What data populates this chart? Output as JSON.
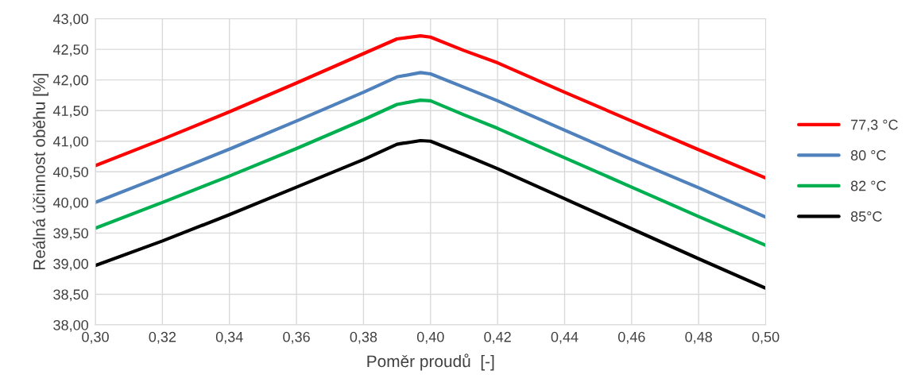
{
  "chart_data": {
    "type": "line",
    "xlabel": "Poměr proudů  [-]",
    "ylabel": "Reálná účinnost oběhu [%]",
    "x": [
      0.3,
      0.32,
      0.34,
      0.36,
      0.38,
      0.39,
      0.397,
      0.4,
      0.41,
      0.42,
      0.44,
      0.46,
      0.48,
      0.5
    ],
    "series": [
      {
        "name": "77,3 °C",
        "color": "#ff0000",
        "values": [
          40.6,
          41.03,
          41.48,
          41.95,
          42.43,
          42.67,
          42.72,
          42.7,
          42.48,
          42.28,
          41.8,
          41.33,
          40.86,
          40.4
        ]
      },
      {
        "name": "80 °C",
        "color": "#4f81bd",
        "values": [
          40.0,
          40.43,
          40.87,
          41.33,
          41.8,
          42.05,
          42.12,
          42.1,
          41.88,
          41.66,
          41.18,
          40.7,
          40.24,
          39.76
        ]
      },
      {
        "name": "82 °C",
        "color": "#00b050",
        "values": [
          39.58,
          40.0,
          40.43,
          40.88,
          41.35,
          41.6,
          41.67,
          41.66,
          41.43,
          41.21,
          40.73,
          40.25,
          39.77,
          39.3
        ]
      },
      {
        "name": "85°C",
        "color": "#000000",
        "values": [
          38.97,
          39.37,
          39.8,
          40.25,
          40.7,
          40.95,
          41.01,
          41.0,
          40.78,
          40.55,
          40.06,
          39.57,
          39.08,
          38.6
        ]
      }
    ],
    "xlim": [
      0.3,
      0.5
    ],
    "xticks": [
      {
        "value": 0.3,
        "label": "0,30"
      },
      {
        "value": 0.32,
        "label": "0,32"
      },
      {
        "value": 0.34,
        "label": "0,34"
      },
      {
        "value": 0.36,
        "label": "0,36"
      },
      {
        "value": 0.38,
        "label": "0,38"
      },
      {
        "value": 0.4,
        "label": "0,40"
      },
      {
        "value": 0.42,
        "label": "0,42"
      },
      {
        "value": 0.44,
        "label": "0,44"
      },
      {
        "value": 0.46,
        "label": "0,46"
      },
      {
        "value": 0.48,
        "label": "0,48"
      },
      {
        "value": 0.5,
        "label": "0,50"
      }
    ],
    "ylim": [
      38,
      43
    ],
    "yticks": [
      {
        "value": 38,
        "label": "38,00"
      },
      {
        "value": 38.5,
        "label": "38,50"
      },
      {
        "value": 39,
        "label": "39,00"
      },
      {
        "value": 39.5,
        "label": "39,50"
      },
      {
        "value": 40,
        "label": "40,00"
      },
      {
        "value": 40.5,
        "label": "40,50"
      },
      {
        "value": 41,
        "label": "41,00"
      },
      {
        "value": 41.5,
        "label": "41,50"
      },
      {
        "value": 42,
        "label": "42,00"
      },
      {
        "value": 42.5,
        "label": "42,50"
      },
      {
        "value": 43,
        "label": "43,00"
      }
    ],
    "grid": true,
    "legend": "right",
    "marker": "none",
    "line_style": "solid"
  }
}
